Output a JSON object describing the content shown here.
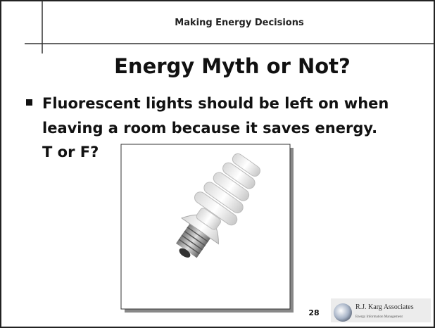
{
  "header": {
    "section": "Making Energy Decisions",
    "title": "Energy Myth or Not?"
  },
  "bullet": {
    "lines": [
      "Fluorescent lights should be left on when",
      "leaving a room because it saves energy.",
      "T or F?"
    ]
  },
  "footer": {
    "page": "28",
    "logo_name": "R.J. Karg Associates",
    "logo_tagline": "Energy Information Management"
  }
}
